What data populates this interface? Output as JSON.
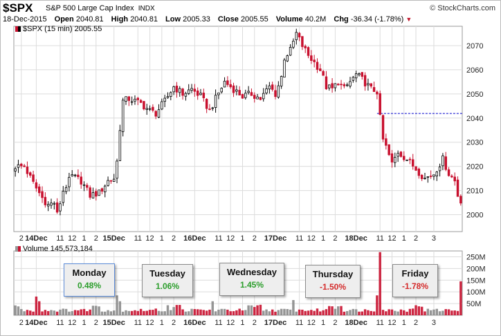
{
  "header": {
    "symbol": "$SPX",
    "name": "S&P 500 Large Cap Index",
    "exchange": "INDX",
    "source": "© StockCharts.com",
    "date": "18-Dec-2015",
    "open_label": "Open",
    "open": "2040.81",
    "high_label": "High",
    "high": "2040.81",
    "low_label": "Low",
    "low": "2005.33",
    "close_label": "Close",
    "close": "2005.55",
    "volume_label": "Volume",
    "volume": "40.2M",
    "chg_label": "Chg",
    "chg": "-36.34 (-1.78%)"
  },
  "price_legend": "$SPX (15 min) 2005.55",
  "volume_legend": "Volume 145,573,184",
  "colors": {
    "up": "#000000",
    "down": "#c8102e",
    "grid": "#dcdcdc",
    "reference_line": "#0000cc",
    "positive": "#2a9d2a",
    "negative": "#d42a2a",
    "note_bg": "#eeeeee"
  },
  "chart_data": [
    {
      "type": "candlestick",
      "interval": "15 min",
      "ylim": [
        1993,
        2078
      ],
      "yticks": [
        2000,
        2010,
        2020,
        2030,
        2040,
        2050,
        2060,
        2070
      ],
      "x_labels": [
        "2",
        "14Dec",
        "11",
        "12",
        "1",
        "2",
        "15Dec",
        "11",
        "12",
        "1",
        "2",
        "16Dec",
        "11",
        "12",
        "1",
        "2",
        "17Dec",
        "11",
        "12",
        "1",
        "2",
        "18Dec",
        "11",
        "12",
        "1",
        "2",
        "3"
      ],
      "reference_line": 2041.9,
      "waypoints": [
        [
          0,
          2020
        ],
        [
          3,
          2020
        ],
        [
          6,
          2013
        ],
        [
          9,
          2007
        ],
        [
          11,
          2004
        ],
        [
          13,
          2005
        ],
        [
          14,
          2000
        ],
        [
          16,
          2010
        ],
        [
          19,
          2016
        ],
        [
          22,
          2014
        ],
        [
          25,
          2008
        ],
        [
          28,
          2009
        ],
        [
          31,
          2014
        ],
        [
          33,
          2015
        ],
        [
          34,
          2022
        ],
        [
          35,
          2036
        ],
        [
          36,
          2047
        ],
        [
          38,
          2048
        ],
        [
          42,
          2046
        ],
        [
          45,
          2043
        ],
        [
          47,
          2042
        ],
        [
          50,
          2047
        ],
        [
          53,
          2053
        ],
        [
          56,
          2050
        ],
        [
          59,
          2052
        ],
        [
          62,
          2049
        ],
        [
          65,
          2043
        ],
        [
          67,
          2048
        ],
        [
          70,
          2055
        ],
        [
          73,
          2052
        ],
        [
          76,
          2049
        ],
        [
          79,
          2050
        ],
        [
          82,
          2048
        ],
        [
          85,
          2053
        ],
        [
          87,
          2050
        ],
        [
          89,
          2057
        ],
        [
          90,
          2065
        ],
        [
          92,
          2068
        ],
        [
          94,
          2075
        ],
        [
          96,
          2070
        ],
        [
          98,
          2066
        ],
        [
          100,
          2063
        ],
        [
          102,
          2060
        ],
        [
          104,
          2053
        ],
        [
          106,
          2052
        ],
        [
          108,
          2055
        ],
        [
          110,
          2052
        ],
        [
          112,
          2055
        ],
        [
          114,
          2058
        ],
        [
          116,
          2056
        ],
        [
          119,
          2052
        ],
        [
          121,
          2051
        ],
        [
          122,
          2040
        ],
        [
          123,
          2031
        ],
        [
          124,
          2028
        ],
        [
          126,
          2021
        ],
        [
          128,
          2026
        ],
        [
          131,
          2023
        ],
        [
          134,
          2019
        ],
        [
          137,
          2015
        ],
        [
          140,
          2017
        ],
        [
          143,
          2023
        ],
        [
          145,
          2017
        ],
        [
          147,
          2014
        ],
        [
          148,
          2008
        ],
        [
          149,
          2006
        ]
      ]
    },
    {
      "type": "bar",
      "series": "Volume",
      "ylim": [
        0,
        275
      ],
      "ytick_labels": [
        "50M",
        "100M",
        "150M",
        "200M",
        "250M"
      ],
      "yticks": [
        50,
        100,
        150,
        200,
        250
      ],
      "spikes": [
        {
          "index": 7,
          "value": 80
        },
        {
          "index": 8,
          "value": 60
        },
        {
          "index": 34,
          "value": 85
        },
        {
          "index": 35,
          "value": 60
        },
        {
          "index": 66,
          "value": 60
        },
        {
          "index": 93,
          "value": 65
        },
        {
          "index": 121,
          "value": 85
        },
        {
          "index": 122,
          "value": 270
        },
        {
          "index": 149,
          "value": 145
        }
      ]
    }
  ],
  "annotations": [
    {
      "day": "Monday",
      "pct": "0.48%",
      "sign": "positive"
    },
    {
      "day": "Tuesday",
      "pct": "1.06%",
      "sign": "positive"
    },
    {
      "day": "Wednesday",
      "pct": "1.45%",
      "sign": "positive"
    },
    {
      "day": "Thursday",
      "pct": "-1.50%",
      "sign": "negative"
    },
    {
      "day": "Friday",
      "pct": "-1.78%",
      "sign": "negative"
    }
  ]
}
